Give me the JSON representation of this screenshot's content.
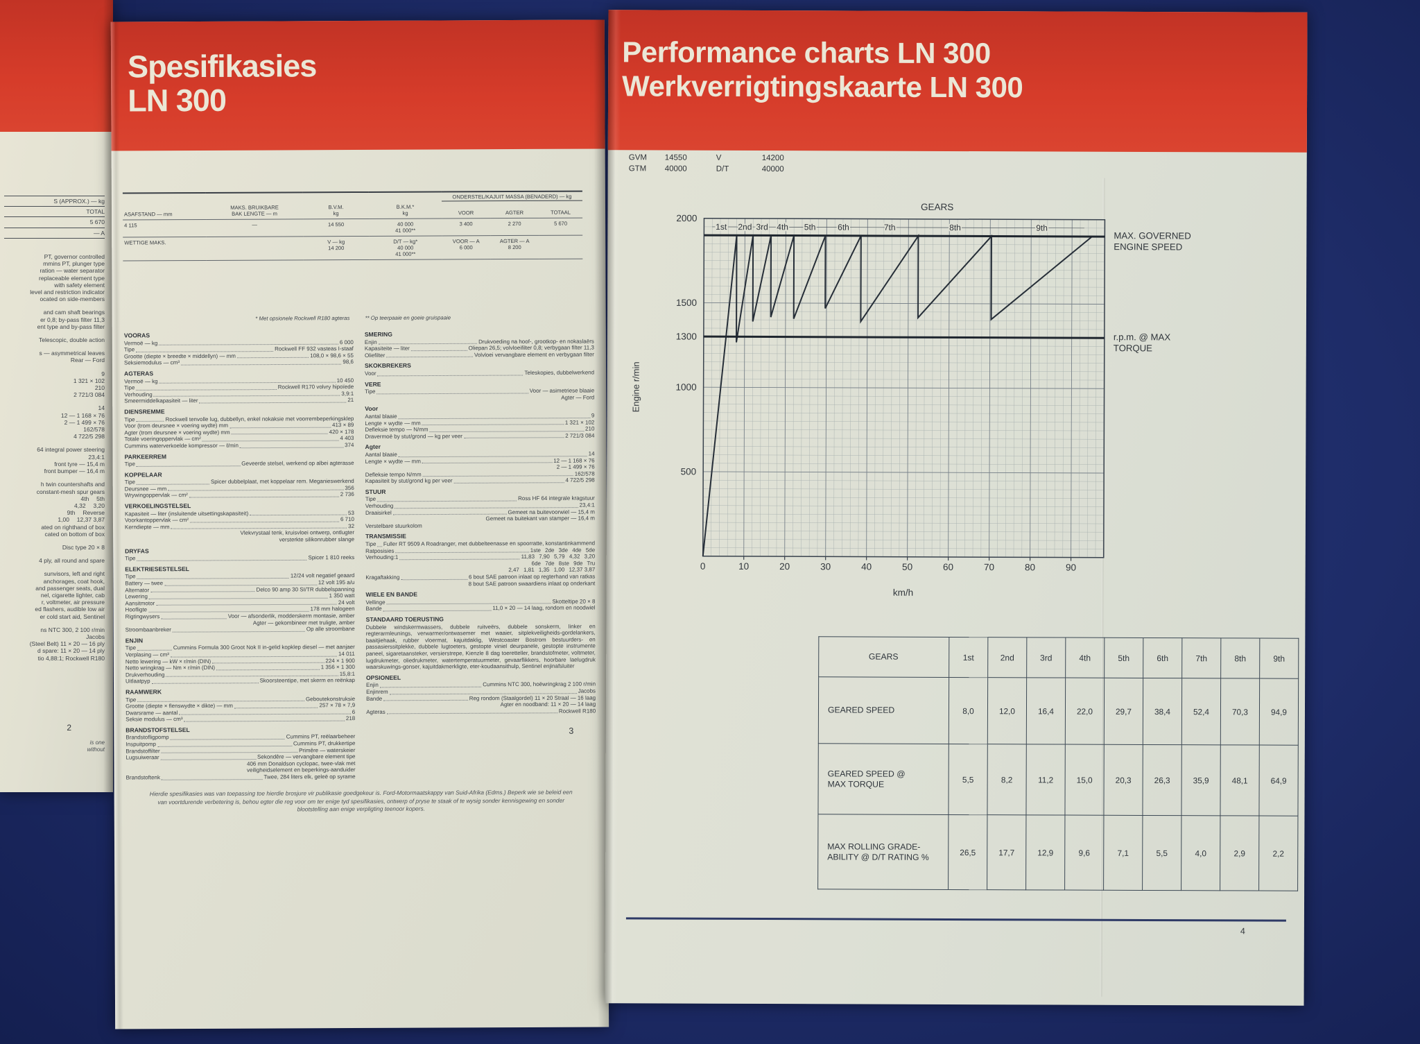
{
  "colors": {
    "background_navy": "#1e2c68",
    "header_red": "#d63c2a",
    "paper": "#e3e2d4",
    "ink": "#34383d",
    "title_cream": "#ebe7d6",
    "page_rule_navy": "#2e3a66"
  },
  "page2": {
    "page_number": "2",
    "fragments": [
      {
        "t": "S (APPROX.) — kg",
        "rule": true
      },
      {
        "t": "TOTAL",
        "rule": true
      },
      {
        "t": "5 670",
        "rule": true
      },
      {
        "t": "— A",
        "rule": true
      },
      {
        "t": "",
        "rule": true
      },
      {
        "t": "PT, governor controlled",
        "gap": true
      },
      {
        "t": "mmins PT, plunger type"
      },
      {
        "t": "ration — water separator"
      },
      {
        "t": "replaceable element type"
      },
      {
        "t": "with safety element"
      },
      {
        "t": "level and restriction indicator"
      },
      {
        "t": "ocated on side-members"
      },
      {
        "t": "and cam shaft bearings",
        "gap": true
      },
      {
        "t": "er 0,8; by-pass filter 11,3"
      },
      {
        "t": "ent type and by-pass filter"
      },
      {
        "t": "Telescopic, double action",
        "gap": true
      },
      {
        "t": "s — asymmetrical leaves",
        "gap": true
      },
      {
        "t": "Rear — Ford"
      },
      {
        "t": "9",
        "gap": true
      },
      {
        "t": "1 321 × 102"
      },
      {
        "t": "210"
      },
      {
        "t": "2 721/3 084"
      },
      {
        "t": "14",
        "gap": true
      },
      {
        "t": "12 — 1 168 × 76"
      },
      {
        "t": "2 — 1 499 × 76"
      },
      {
        "t": "162/578"
      },
      {
        "t": "4 722/5 298"
      },
      {
        "t": "64 integral power steering",
        "gap": true
      },
      {
        "t": "23,4:1"
      },
      {
        "t": "front tyre — 15,4 m"
      },
      {
        "t": "front bumper — 16,4 m"
      },
      {
        "t": "h twin countershafts and",
        "gap": true
      },
      {
        "t": "constant-mesh spur gears"
      },
      {
        "t": "4th  5th"
      },
      {
        "t": "4,32  3,20"
      },
      {
        "t": "9th  Reverse"
      },
      {
        "t": "1,00  12,37  3,87"
      },
      {
        "t": "ated on righthand of box"
      },
      {
        "t": "cated on bottom of box"
      },
      {
        "t": "Disc type 20 × 8",
        "gap": true
      },
      {
        "t": "4 ply, all round and spare",
        "gap": true
      },
      {
        "t": "sunvisors, left and right",
        "gap": true
      },
      {
        "t": "anchorages, coat hook,"
      },
      {
        "t": "and passenger seats, dual"
      },
      {
        "t": "nel, cigarette lighter, cab"
      },
      {
        "t": "r, voltmeter, air pressure"
      },
      {
        "t": "ed flashers, audible low air"
      },
      {
        "t": "er cold start aid, Sentinel"
      },
      {
        "t": "ns NTC 300, 2 100 r/min",
        "gap": true
      },
      {
        "t": "Jacobs"
      },
      {
        "t": "(Steel Belt) 11 × 20 — 16 ply"
      },
      {
        "t": "d spare: 11 × 20 — 14 ply"
      },
      {
        "t": "tio 4,88:1; Rockwell R180"
      }
    ],
    "footnote_lines": [
      "is one",
      "without"
    ]
  },
  "page3": {
    "title_line1": "Spesifikasies",
    "title_line2": "LN 300",
    "page_number": "3",
    "top_table": {
      "group_header": "ONDERSTEL/KAJUIT MASSA (BENADERD) — kg",
      "col_headers": [
        "ASAFSTAND — mm",
        "MAKS. BRUIKBARE\nBAK LENGTE — m",
        "B.V.M.\nkg",
        "B.K.M.*\nkg"
      ],
      "group_cols": [
        "VOOR",
        "AGTER",
        "TOTAAL"
      ],
      "rows": [
        [
          "4 115",
          "—",
          "14 550",
          "40 000\n41 000**",
          "3 400",
          "2 270",
          "5 670"
        ],
        [
          "WETTIGE MAKS.",
          "",
          "V — kg\n14 200",
          "D/T — kg*\n40 000\n41 000**",
          "VOOR — A\n6 000",
          "AGTER — A\n8 200",
          ""
        ]
      ],
      "footnote1": "* Met opsionele Rockwell R180 agteras",
      "footnote2": "** Op teerpaaie en goeie gruispaaie"
    },
    "left_sections": [
      {
        "title": "VOORAS",
        "lines": [
          {
            "l": "Vermoë — kg",
            "r": "6 000"
          },
          {
            "l": "Tipe",
            "r": "Rockwell FF 932 vasteas I-staaf"
          },
          {
            "l": "Grootte (diepte × breedte × middellyn) — mm",
            "r": "108,0 × 98,6 × 55"
          },
          {
            "l": "Seksiemodulus — cm³",
            "r": "98,6"
          }
        ]
      },
      {
        "title": "AGTERAS",
        "lines": [
          {
            "l": "Vermoë — kg",
            "r": "10 450"
          },
          {
            "l": "Tipe",
            "r": "Rockwell R170 volvry hipoïede"
          },
          {
            "l": "Verhouding",
            "r": "3,9:1"
          },
          {
            "l": "Smeermiddelkapasiteit — liter",
            "r": "21"
          }
        ]
      },
      {
        "title": "DIENSREMME",
        "lines": [
          {
            "l": "Tipe",
            "r": "Rockwell tenvolle lug, dubbellyn, enkel nokaksie met voorrembeperkingsklep"
          },
          {
            "l": "Voor (trom deursnee × voering wydte) mm",
            "r": "413 × 89"
          },
          {
            "l": "Agter (trom deursnee × voering wydte) mm",
            "r": "420 × 178"
          },
          {
            "l": "Totale voeringoppervlak — cm²",
            "r": "4 403"
          },
          {
            "l": "Cummins waterverkoelde kompressor — ℓ/min",
            "r": "374"
          }
        ]
      },
      {
        "title": "PARKEERREM",
        "lines": [
          {
            "l": "Tipe",
            "r": "Geveerde stelsel, werkend op albei agterasse"
          }
        ]
      },
      {
        "title": "KOPPELAAR",
        "lines": [
          {
            "l": "Tipe",
            "r": "Spicer dubbelplaat, met koppelaar rem. Meganieswerkend"
          },
          {
            "l": "Deursnee — mm",
            "r": "356"
          },
          {
            "l": "Wrywingoppervlak — cm²",
            "r": "2 736"
          }
        ]
      },
      {
        "title": "VERKOELINGSTELSEL",
        "lines": [
          {
            "l": "Kapasiteit — liter (insluitende uitsettingskapasiteit)",
            "r": "53"
          },
          {
            "l": "Voorkantoppervlak — cm²",
            "r": "6 710"
          },
          {
            "l": "Kerndiepte — mm",
            "r": "32"
          },
          {
            "t": "Vlekvrystaal tenk, kruisvloei ontwerp, ontlugter"
          },
          {
            "t": "versterkte silikonrubber slange"
          }
        ]
      },
      {
        "title": "DRYFAS",
        "lines": [
          {
            "l": "Tipe",
            "r": "Spicer 1 810 reeks"
          }
        ]
      },
      {
        "title": "ELEKTRIESESTELSEL",
        "lines": [
          {
            "l": "Tipe",
            "r": "12/24 volt negatief geaard"
          },
          {
            "l": "Battery — twee",
            "r": "12 volt 195 a/u"
          },
          {
            "l": "Alternator",
            "r": "Delco 90 amp 30 SI/TR dubbelspanning"
          },
          {
            "l": "Lewering",
            "r": "1 350 watt"
          },
          {
            "l": "Aansitmotor",
            "r": "24 volt"
          },
          {
            "l": "Hoofligte",
            "r": "178 mm halogeen"
          },
          {
            "l": "Rigtingwysers",
            "r": "Voor — afsonderlik, modderskerm montasie, amber"
          },
          {
            "t": "Agter — gekombineer met truligte, amber"
          },
          {
            "l": "Stroombaanbreker",
            "r": "Op alle stroombane"
          }
        ]
      },
      {
        "title": "ENJIN",
        "lines": [
          {
            "l": "Tipe",
            "r": "Cummins Formula 300 Groot Nok II in-gelid kopklep diesel — met aanjaer"
          },
          {
            "l": "Verplasing — cm³",
            "r": "14 011"
          },
          {
            "l": "Netto lewering — kW × r/min (DIN)",
            "r": "224 × 1 900"
          },
          {
            "l": "Netto wringkrag — Nm × r/min (DIN)",
            "r": "1 356 × 1 300"
          },
          {
            "l": "Drukverhouding",
            "r": "15,8:1"
          },
          {
            "l": "Uitlaatpyp",
            "r": "Skoorsteentipe, met skerm en reënkap"
          }
        ]
      },
      {
        "title": "RAAMWERK",
        "lines": [
          {
            "l": "Tipe",
            "r": "Geboutekonstruksie"
          },
          {
            "l": "Grootte (diepte × flenswydte × dikte) — mm",
            "r": "257 × 78 × 7,9"
          },
          {
            "l": "Dwarsrame — aantal",
            "r": "6"
          },
          {
            "l": "Seksie modulus — cm³",
            "r": "218"
          }
        ]
      },
      {
        "title": "BRANDSTOFSTELSEL",
        "lines": [
          {
            "l": "Brandstofligpomp",
            "r": "Cummins PT, reëlaarbeheer"
          },
          {
            "l": "Inspuitpomp",
            "r": "Cummins PT, drukkertipe"
          },
          {
            "l": "Brandstoffilter",
            "r": "Primêre — waterskeier"
          },
          {
            "l": "Lugsuiweraar",
            "r": "Sekondêre — vervangbare element tipe"
          },
          {
            "t": "406 mm Donaldson cyclopac, twee-vlak met"
          },
          {
            "t": "veiligheidselement en beperkings-aanduider"
          },
          {
            "l": "Brandstoftenk",
            "r": "Twee, 284 liters elk, geleë op syrame"
          }
        ]
      }
    ],
    "right_sections": [
      {
        "title": "SMERING",
        "lines": [
          {
            "l": "Enjin",
            "r": "Drukvoeding na hoof-, grootkop- en nokaslaërs"
          },
          {
            "l": "Kapasiteite — liter",
            "r": "Oliepan 26,5; volvloeifilter 0,8; verbygaan filter 11,3"
          },
          {
            "l": "Oliefilter",
            "r": "Volvloei vervangbare element en verbygaan filter"
          }
        ]
      },
      {
        "title": "SKOKBREKERS",
        "lines": [
          {
            "l": "Voor",
            "r": "Teleskopies, dubbelwerkend"
          }
        ]
      },
      {
        "title": "VERE",
        "lines": [
          {
            "l": "Tipe",
            "r": "Voor — asimetriese blaaie"
          },
          {
            "t": "Agter — Ford"
          }
        ]
      },
      {
        "title": "Voor",
        "lines": [
          {
            "l": "Aantal blaaie",
            "r": "9"
          },
          {
            "l": "Lengte × wydte — mm",
            "r": "1 321 × 102"
          },
          {
            "l": "Defleksie tempo — N/mm",
            "r": "210"
          },
          {
            "l": "Dravermoë by stut/grond — kg per veer",
            "r": "2 721/3 084"
          }
        ]
      },
      {
        "title": "Agter",
        "lines": [
          {
            "l": "Aantal blaaie",
            "r": "14"
          },
          {
            "l": "Lengte × wydte — mm",
            "r": "12 — 1 168 × 76"
          },
          {
            "t": "2 — 1 499 × 76"
          },
          {
            "l": "Defleksie tempo N/mm",
            "r": "162/578"
          },
          {
            "l": "Kapasiteit by stut/grond kg per veer",
            "r": "4 722/5 298"
          }
        ]
      },
      {
        "title": "STUUR",
        "lines": [
          {
            "l": "Tipe",
            "r": "Ross HF 64 integrale kragstuur"
          },
          {
            "l": "Verhouding",
            "r": "23,4:1"
          },
          {
            "l": "Draaisirkel",
            "r": "Gemeet na buitevoorwiel — 15,4 m"
          },
          {
            "t": "Gemeet na buitekant van stamper — 16,4 m"
          },
          {
            "t": "Verstelbare stuurkolom",
            "a": "l"
          }
        ]
      },
      {
        "title": "TRANSMISSIE",
        "lines": [
          {
            "l": "Tipe",
            "r": "Fuller RT 9509 A Roadranger, met dubbelteenasse en spoorratte, konstantinkammend"
          },
          {
            "l": "Ratposisies",
            "r": "1ste  2de  3de  4de  5de"
          },
          {
            "l": "Verhouding:1",
            "r": "11,83  7,90  5,79  4,32  3,20"
          },
          {
            "t": "6de  7de  8ste  9de  Tru"
          },
          {
            "t": "2,47  1,81  1,35  1,00  12,37  3,87"
          },
          {
            "l": "Kragaftakking",
            "r": "6 bout SAE patroon inlaat op regterhand van ratkas"
          },
          {
            "t": "8 bout SAE patroon swaardiens inlaat op onderkant"
          }
        ]
      },
      {
        "title": "WIELE EN BANDE",
        "lines": [
          {
            "l": "Vellinge",
            "r": "Skotteltipe 20 × 8"
          },
          {
            "l": "Bande",
            "r": "11,0 × 20 — 14 laag, rondom en noodwiel"
          }
        ]
      },
      {
        "title": "STANDAARD TOERUSTING",
        "lines": [
          {
            "p": "Dubbele windskermwassers, dubbele ruitveërs, dubbele sonskerm, linker en regterarmleunings, verwarmer/ontwasemer met waaier, sitplekveiligheids-gordelankers, baaitjiehaak, rubber vloermat, kajuitdaklig, Westcoaster Bostrom bestuurders- en passasierssitplekke, dubbele lugtoeters, gestopte viniel deurpanele, gestopte instrumente paneel, sigaretaansteker, versierstrepe, Kienzle 8 dag toeretteller, brandstofmeter, voltmeter, lugdrukmeter, oliedrukmeter, watertemperatuurmeter, gevaarflikkers, hoorbare laelugdruk waarskuwings-gonser, kajuitdakmerkligte, eter-koudaansithulp, Sentinel enjinafsluiter"
          }
        ]
      },
      {
        "title": "OPSIONEEL",
        "lines": [
          {
            "l": "Enjin",
            "r": "Cummins NTC 300, hoëwringkrag 2 100 r/min"
          },
          {
            "l": "Enjinrem",
            "r": "Jacobs"
          },
          {
            "l": "Bande",
            "r": "Reg rondom (Staalgordel) 11 × 20 Straal — 16 laag"
          },
          {
            "t": "Agter en noodband: 11 × 20 — 14 laag"
          },
          {
            "l": "Agteras",
            "r": "Rockwell R180"
          }
        ]
      }
    ],
    "footer": "Hierdie spesifikasies was van toepassing toe hierdie brosjure vir publikasie goedgekeur is. Ford-Motormaatskappy van Suid-Afrika (Edms.) Beperk wie se beleid een van voortdurende verbetering is, behou egter die reg voor om ter enige tyd spesifikasies, ontwerp of pryse te staak of te wysig sonder kennisgewing en sonder blootstelling aan enige verpligting teenoor kopers."
  },
  "page4": {
    "title_line1": "Performance charts LN 300",
    "title_line2": "Werkverrigtingskaarte LN 300",
    "page_number": "4",
    "mass_block": {
      "rows": [
        [
          "GVM",
          "14550",
          "V",
          "14200"
        ],
        [
          "GTM",
          "40000",
          "D/T",
          "40000"
        ]
      ]
    },
    "table": {
      "header": [
        "GEARS",
        "1st",
        "2nd",
        "3rd",
        "4th",
        "5th",
        "6th",
        "7th",
        "8th",
        "9th"
      ],
      "rows": [
        {
          "label": "GEARED SPEED",
          "values": [
            "8,0",
            "12,0",
            "16,4",
            "22,0",
            "29,7",
            "38,4",
            "52,4",
            "70,3",
            "94,9"
          ]
        },
        {
          "label": "GEARED SPEED @\nMAX TORQUE",
          "values": [
            "5,5",
            "8,2",
            "11,2",
            "15,0",
            "20,3",
            "26,3",
            "35,9",
            "48,1",
            "64,9"
          ]
        },
        {
          "label": "MAX ROLLING GRADE-\nABILITY @ D/T RATING  %",
          "values": [
            "26,5",
            "17,7",
            "12,9",
            "9,6",
            "7,1",
            "5,5",
            "4,0",
            "2,9",
            "2,2"
          ]
        }
      ]
    }
  },
  "chart_data": {
    "type": "line",
    "title": "GEARS",
    "xlabel": "km/h",
    "ylabel": "Engine r/min",
    "xlim": [
      0,
      98
    ],
    "ylim": [
      0,
      2000
    ],
    "x_ticks": [
      0,
      10,
      20,
      30,
      40,
      50,
      60,
      70,
      80,
      90
    ],
    "y_tick_labels": [
      2000,
      1500,
      1300,
      1000,
      500
    ],
    "x_minor_step": 2,
    "y_minor_step": 50,
    "grid": true,
    "legend_position": "none",
    "governed_rpm": 1900,
    "max_torque_rpm": 1300,
    "gear_labels": [
      "1st",
      "2nd",
      "3rd",
      "4th",
      "5th",
      "6th",
      "7th",
      "8th",
      "9th"
    ],
    "gear_label_x": [
      4.2,
      10.0,
      14.2,
      19.2,
      25.9,
      34.1,
      45.4,
      61.4,
      82.6
    ],
    "geared_speed_kmh": [
      8.0,
      12.0,
      16.4,
      22.0,
      29.7,
      38.4,
      52.4,
      70.3,
      94.9
    ],
    "annotation_governed": "MAX. GOVERNED\nENGINE SPEED",
    "annotation_torque": "r.p.m. @ MAX\nTORQUE"
  }
}
